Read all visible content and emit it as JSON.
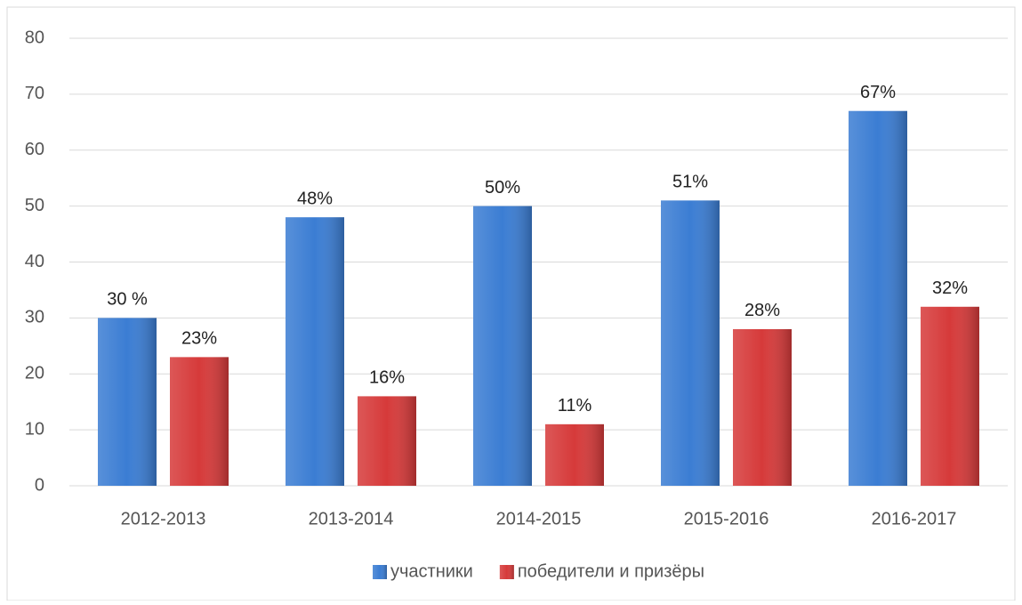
{
  "chart_data": {
    "type": "bar",
    "categories": [
      "2012-2013",
      "2013-2014",
      "2014-2015",
      "2015-2016",
      "2016-2017"
    ],
    "series": [
      {
        "name": "участники",
        "color": "#3b7dd3",
        "values": [
          30,
          48,
          50,
          51,
          67
        ],
        "value_labels": [
          "30 %",
          "48%",
          "50%",
          "51%",
          "67%"
        ]
      },
      {
        "name": "победители и призёры",
        "color": "#d63a3a",
        "values": [
          23,
          16,
          11,
          28,
          32
        ],
        "value_labels": [
          "23%",
          "16%",
          "11%",
          "28%",
          "32%"
        ]
      }
    ],
    "ylim": [
      0,
      80
    ],
    "yticks": [
      0,
      10,
      20,
      30,
      40,
      50,
      60,
      70,
      80
    ],
    "grid": true,
    "legend": "bottom"
  }
}
